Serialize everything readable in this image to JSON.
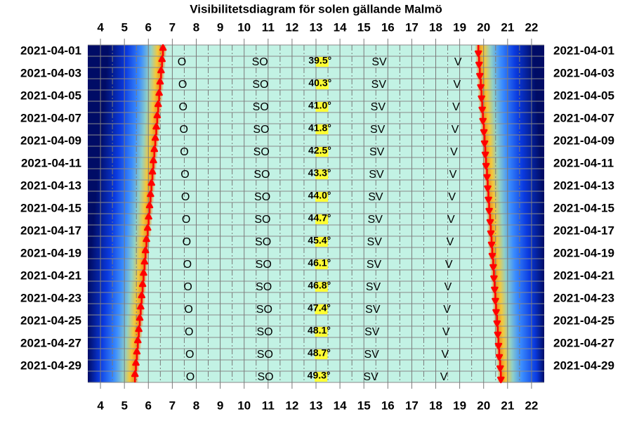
{
  "chart_data": {
    "type": "visibility",
    "title": "Visibilitetsdiagram för solen gällande Malmö",
    "xlim": [
      3.47,
      22.53
    ],
    "xticks": [
      4,
      5,
      6,
      7,
      8,
      9,
      10,
      11,
      12,
      13,
      14,
      15,
      16,
      17,
      18,
      19,
      20,
      21,
      22
    ],
    "categories": [
      "2021-04-01",
      null,
      "2021-04-03",
      null,
      "2021-04-05",
      null,
      "2021-04-07",
      null,
      "2021-04-09",
      null,
      "2021-04-11",
      null,
      "2021-04-13",
      null,
      "2021-04-15",
      null,
      "2021-04-17",
      null,
      "2021-04-19",
      null,
      "2021-04-21",
      null,
      "2021-04-23",
      null,
      "2021-04-25",
      null,
      "2021-04-27",
      null,
      "2021-04-29",
      null
    ],
    "sunrise": [
      6.61,
      6.57,
      6.53,
      6.49,
      6.45,
      6.41,
      6.37,
      6.33,
      6.29,
      6.25,
      6.21,
      6.17,
      6.13,
      6.09,
      6.05,
      6.01,
      5.97,
      5.92,
      5.88,
      5.84,
      5.8,
      5.76,
      5.72,
      5.68,
      5.64,
      5.6,
      5.56,
      5.52,
      5.48,
      5.44
    ],
    "sunset": [
      19.78,
      19.81,
      19.84,
      19.88,
      19.91,
      19.94,
      19.97,
      20.01,
      20.04,
      20.07,
      20.1,
      20.14,
      20.17,
      20.2,
      20.23,
      20.27,
      20.3,
      20.33,
      20.36,
      20.4,
      20.43,
      20.46,
      20.49,
      20.52,
      20.56,
      20.59,
      20.62,
      20.65,
      20.69,
      20.72
    ],
    "directions": [
      {
        "name": "O",
        "times": [
          7.4,
          7.43,
          7.45,
          7.48,
          7.5,
          7.53,
          7.55,
          7.58,
          7.6,
          7.63,
          7.65,
          7.68,
          7.7,
          7.73,
          7.75
        ]
      },
      {
        "name": "SO",
        "times": [
          10.66,
          10.68,
          10.69,
          10.71,
          10.72,
          10.74,
          10.76,
          10.77,
          10.79,
          10.81,
          10.82,
          10.84,
          10.86,
          10.87,
          10.89
        ]
      },
      {
        "name": "SV",
        "times": [
          15.64,
          15.62,
          15.59,
          15.57,
          15.54,
          15.52,
          15.49,
          15.47,
          15.44,
          15.42,
          15.39,
          15.37,
          15.34,
          15.32,
          15.29
        ]
      },
      {
        "name": "V",
        "times": [
          18.93,
          18.89,
          18.85,
          18.81,
          18.76,
          18.72,
          18.68,
          18.64,
          18.6,
          18.55,
          18.51,
          18.47,
          18.43,
          18.39,
          18.34
        ]
      }
    ],
    "culmination": {
      "times": [
        13.17,
        13.17,
        13.16,
        13.16,
        13.16,
        13.15,
        13.15,
        13.15,
        13.14,
        13.14,
        13.14,
        13.13,
        13.13,
        13.13,
        13.12
      ],
      "values": [
        39.5,
        40.3,
        41.0,
        41.8,
        42.5,
        43.3,
        44.0,
        44.7,
        45.4,
        46.1,
        46.8,
        47.4,
        48.1,
        48.7,
        49.3
      ],
      "value_labels": [
        "39.5°",
        "40.3°",
        "41.0°",
        "41.8°",
        "42.5°",
        "43.3°",
        "44.0°",
        "44.7°",
        "45.4°",
        "46.1°",
        "46.8°",
        "47.4°",
        "48.1°",
        "48.7°",
        "49.3°"
      ]
    }
  }
}
